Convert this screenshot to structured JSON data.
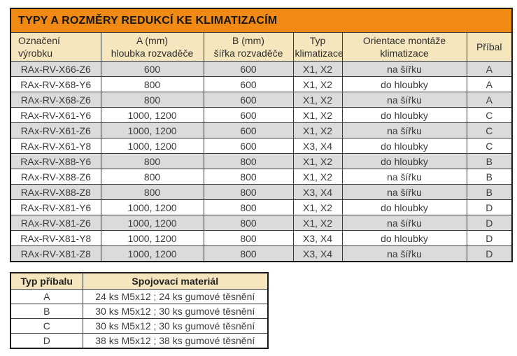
{
  "colors": {
    "title_bg": "#F08A14",
    "header_bg": "#F5E6BE",
    "row_alt_bg": "#DBDBDB",
    "row_bg": "#FFFFFF",
    "border": "#1A1A1A",
    "text": "#3C3C3C"
  },
  "main_table": {
    "title": "TYPY A ROZMĚRY REDUKCÍ KE KLIMATIZACÍM",
    "headers": [
      "Označení\nvýrobku",
      "A (mm)\nhloubka rozvaděče",
      "B (mm)\nšířka rozvaděče",
      "Typ\nklimatizace",
      "Orientace montáže\nklimatizace",
      "Příbal"
    ],
    "rows": [
      [
        "RAx-RV-X66-Z6",
        "600",
        "600",
        "X1, X2",
        "na šířku",
        "A"
      ],
      [
        "RAx-RV-X68-Y6",
        "800",
        "600",
        "X1, X2",
        "do hloubky",
        "A"
      ],
      [
        "RAx-RV-X68-Z6",
        "800",
        "600",
        "X1, X2",
        "na šířku",
        "A"
      ],
      [
        "RAx-RV-X61-Y6",
        "1000, 1200",
        "600",
        "X1, X2",
        "do hloubky",
        "C"
      ],
      [
        "RAx-RV-X61-Z6",
        "1000, 1200",
        "600",
        "X1, X2",
        "na šířku",
        "C"
      ],
      [
        "RAx-RV-X61-Y8",
        "1000, 1200",
        "600",
        "X3, X4",
        "do hloubky",
        "C"
      ],
      [
        "RAx-RV-X88-Y6",
        "800",
        "800",
        "X1, X2",
        "do hloubky",
        "B"
      ],
      [
        "RAx-RV-X88-Z6",
        "800",
        "800",
        "X1, X2",
        "na šířku",
        "B"
      ],
      [
        "RAx-RV-X88-Z8",
        "800",
        "800",
        "X3, X4",
        "na šířku",
        "B"
      ],
      [
        "RAx-RV-X81-Y6",
        "1000, 1200",
        "800",
        "X1, X2",
        "do hloubky",
        "D"
      ],
      [
        "RAx-RV-X81-Z6",
        "1000, 1200",
        "800",
        "X1, X2",
        "na šířku",
        "D"
      ],
      [
        "RAx-RV-X81-Y8",
        "1000, 1200",
        "800",
        "X3, X4",
        "do hloubky",
        "D"
      ],
      [
        "RAx-RV-X81-Z8",
        "1000, 1200",
        "800",
        "X3, X4",
        "na šířku",
        "D"
      ]
    ]
  },
  "accessory_table": {
    "headers": [
      "Typ příbalu",
      "Spojovací materiál"
    ],
    "rows": [
      [
        "A",
        "24 ks M5x12 ; 24 ks gumové těsnění"
      ],
      [
        "B",
        "30 ks M5x12 ; 30 ks gumové těsnění"
      ],
      [
        "C",
        "30 ks M5x12 ; 30 ks gumové těsnění"
      ],
      [
        "D",
        "38 ks M5x12 ; 38 ks gumové těsnění"
      ]
    ]
  }
}
